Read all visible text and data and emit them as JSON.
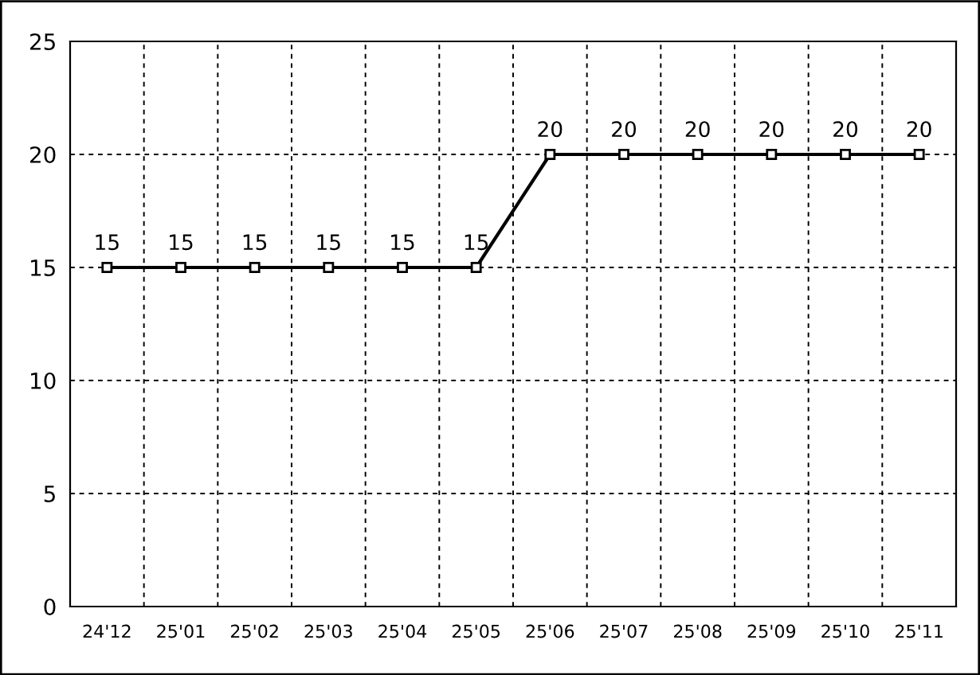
{
  "chart_data": {
    "type": "line",
    "categories": [
      "24'12",
      "25'01",
      "25'02",
      "25'03",
      "25'04",
      "25'05",
      "25'06",
      "25'07",
      "25'08",
      "25'09",
      "25'10",
      "25'11"
    ],
    "series": [
      {
        "color": "#000000",
        "values": [
          15,
          15,
          15,
          15,
          15,
          15,
          20,
          20,
          20,
          20,
          20,
          20
        ]
      }
    ],
    "ylim": [
      0,
      25
    ],
    "yticks": [
      0,
      5,
      10,
      15,
      20,
      25
    ],
    "grid": true,
    "marker": "square",
    "line_style": "solid",
    "data_labels": true
  }
}
